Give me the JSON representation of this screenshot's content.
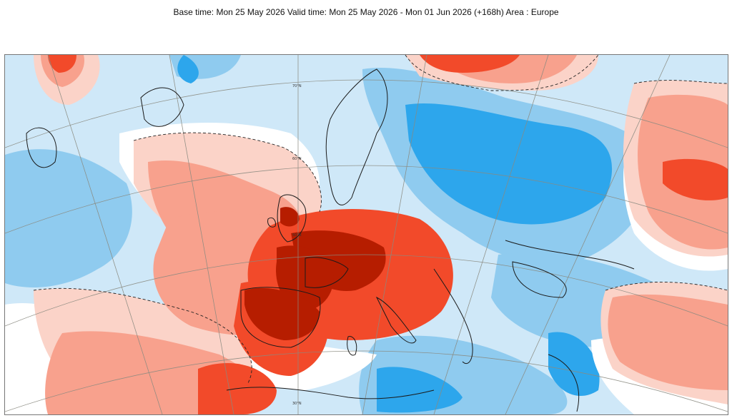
{
  "header": {
    "title": "Base time: Mon 25 May 2026 Valid time: Mon 25 May 2026 - Mon 01 Jun 2026 (+168h) Area : Europe"
  },
  "map": {
    "area": "Europe",
    "latitude_labels": [
      "30°N",
      "50°N",
      "60°N",
      "70°N"
    ],
    "palette": {
      "strong_warm": "#b61d00",
      "warm": "#f24a2a",
      "mild_warm": "#f8a18d",
      "weak_warm": "#fbd3c8",
      "neutral": "#ffffff",
      "weak_cold": "#cfe8f8",
      "mild_cold": "#8fcbef",
      "cold": "#2da6ec",
      "coast": "#1a1a1a",
      "graticule": "#8a8a80"
    }
  }
}
